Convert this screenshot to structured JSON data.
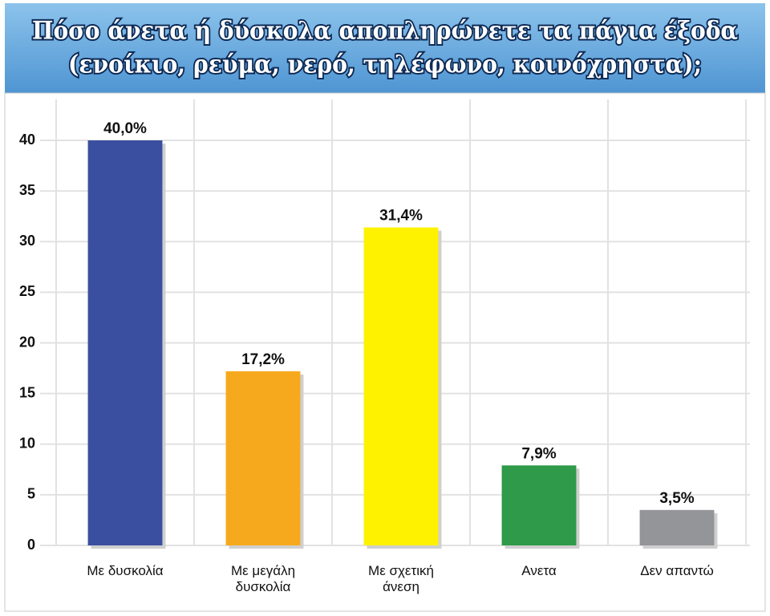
{
  "chart_data": {
    "type": "bar",
    "title": [
      "Πόσο άνετα ή δύσκολα αποπληρώνετε τα πάγια έξοδα",
      "(ενοίκιο, ρεύμα, νερό, τηλέφωνο, κοινόχρηστα);"
    ],
    "categories": [
      "Με δυσκολία",
      "Με μεγάλη δυσκολία",
      "Με σχετική άνεση",
      "Ανετα",
      "Δεν απαντώ"
    ],
    "values": [
      40.0,
      17.2,
      31.4,
      7.9,
      3.5
    ],
    "value_labels": [
      "40,0%",
      "17,2%",
      "31,4%",
      "7,9%",
      "3,5%"
    ],
    "colors": [
      "#3a4f9f",
      "#f7a91d",
      "#fff200",
      "#2f9a49",
      "#949599"
    ],
    "ylim": [
      0,
      44
    ],
    "yticks": [
      0,
      5,
      10,
      15,
      20,
      25,
      30,
      35,
      40
    ],
    "grid": true
  }
}
